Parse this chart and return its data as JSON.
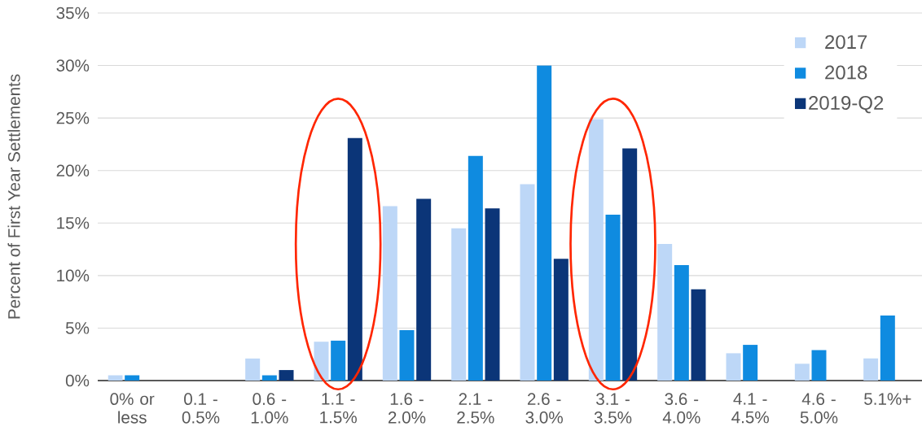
{
  "chart_data": {
    "type": "bar",
    "ylabel": "Percent of First Year Settlements",
    "categories": [
      "0% or less",
      "0.1 - 0.5%",
      "0.6 - 1.0%",
      "1.1 - 1.5%",
      "1.6 - 2.0%",
      "2.1 - 2.5%",
      "2.6 - 3.0%",
      "3.1 - 3.5%",
      "3.6 - 4.0%",
      "4.1 - 4.5%",
      "4.6 - 5.0%",
      "5.1%+"
    ],
    "series": [
      {
        "name": "2017",
        "color": "#bdd7f7",
        "values": [
          0.5,
          0,
          2.1,
          3.7,
          16.6,
          14.5,
          18.7,
          24.9,
          13.0,
          2.6,
          1.6,
          2.1
        ]
      },
      {
        "name": "2018",
        "color": "#0f8be0",
        "values": [
          0.5,
          0,
          0.5,
          3.8,
          4.8,
          21.4,
          30.0,
          15.8,
          11.0,
          3.4,
          2.9,
          6.2
        ]
      },
      {
        "name": "2019-Q2",
        "color": "#0b3578",
        "values": [
          0,
          0,
          1.0,
          23.1,
          17.3,
          16.4,
          11.6,
          22.1,
          8.7,
          0,
          0,
          0
        ]
      }
    ],
    "ylim": [
      0,
      35
    ],
    "yticks": [
      {
        "value": 0,
        "label": "0%"
      },
      {
        "value": 5,
        "label": "5%"
      },
      {
        "value": 10,
        "label": "10%"
      },
      {
        "value": 15,
        "label": "15%"
      },
      {
        "value": 20,
        "label": "20%"
      },
      {
        "value": 25,
        "label": "25%"
      },
      {
        "value": 30,
        "label": "30%"
      },
      {
        "value": 35,
        "label": "35%"
      }
    ],
    "grid": "y",
    "legend": "top right"
  }
}
